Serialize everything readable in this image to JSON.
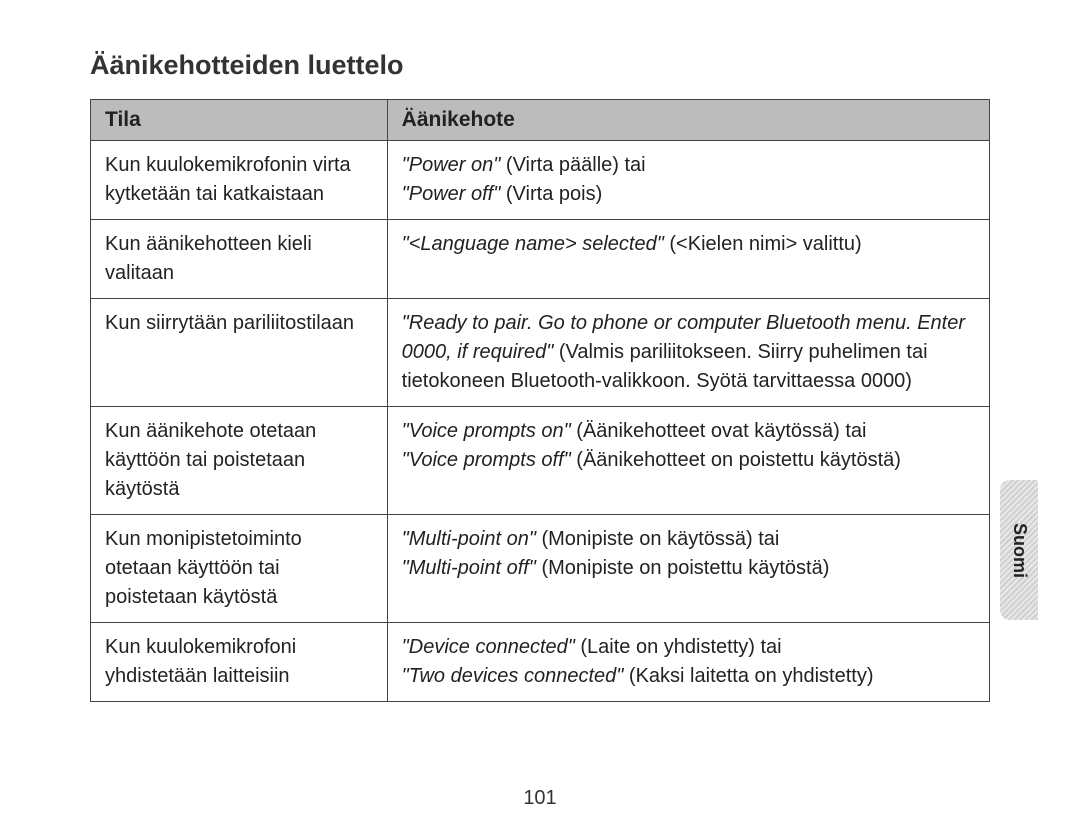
{
  "title": "Äänikehotteiden luettelo",
  "side_tab": "Suomi",
  "page_number": "101",
  "table": {
    "headers": {
      "col1": "Tila",
      "col2": "Äänikehote"
    },
    "rows": [
      {
        "left": "Kun kuulokemikrofonin virta kytketään tai katkaistaan",
        "right_parts": [
          {
            "italic": "\"Power on\"",
            "plain": " (Virta päälle) tai"
          },
          {
            "italic": "\"Power off\"",
            "plain": " (Virta pois)"
          }
        ]
      },
      {
        "left": "Kun äänikehotteen kieli valitaan",
        "right_parts": [
          {
            "italic": "\"<Language name> selected\"",
            "plain": " (<Kielen nimi> valittu)"
          }
        ]
      },
      {
        "left": "Kun siirrytään pariliitostilaan",
        "right_parts": [
          {
            "italic": "\"Ready to pair. Go to phone or computer Bluetooth menu. Enter 0000, if required\"",
            "plain": " (Valmis pariliitokseen. Siirry puhelimen tai tietokoneen Bluetooth-valikkoon. Syötä tarvittaessa 0000)"
          }
        ]
      },
      {
        "left": "Kun äänikehote otetaan käyttöön tai poistetaan käytöstä",
        "right_parts": [
          {
            "italic": "\"Voice prompts on\"",
            "plain": " (Äänikehotteet ovat käytössä) tai"
          },
          {
            "italic": "\"Voice prompts off\"",
            "plain": " (Äänikehotteet on poistettu käytöstä)"
          }
        ]
      },
      {
        "left": "Kun monipistetoiminto otetaan käyttöön tai poistetaan käytöstä",
        "right_parts": [
          {
            "italic": "\"Multi-point on\"",
            "plain": " (Monipiste on käytössä) tai"
          },
          {
            "italic": "\"Multi-point off\"",
            "plain": " (Monipiste on poistettu käytöstä)"
          }
        ]
      },
      {
        "left": "Kun kuulokemikrofoni yhdistetään laitteisiin",
        "right_parts": [
          {
            "italic": "\"Device connected\"",
            "plain": " (Laite on yhdistetty) tai"
          },
          {
            "italic": "\"Two devices connected\"",
            "plain": " (Kaksi laitetta on yhdistetty)"
          }
        ]
      }
    ]
  }
}
